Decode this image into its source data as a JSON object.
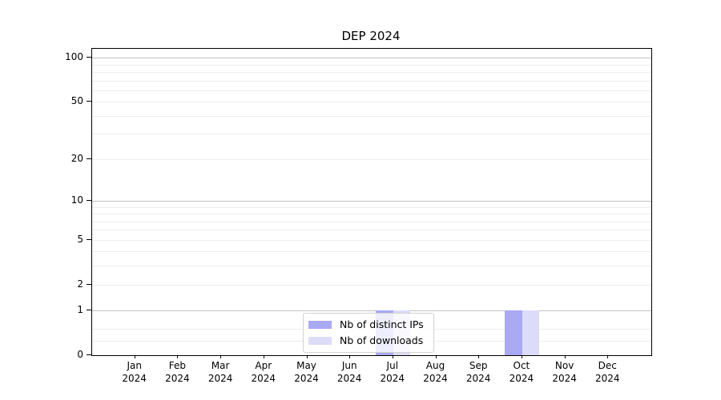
{
  "chart_data": {
    "type": "bar",
    "title": "DEP 2024",
    "categories": [
      "Jan",
      "Feb",
      "Mar",
      "Apr",
      "May",
      "Jun",
      "Jul",
      "Aug",
      "Sep",
      "Oct",
      "Nov",
      "Dec"
    ],
    "year_label": "2024",
    "series": [
      {
        "name": "Nb of distinct IPs",
        "color": "#a9a9f4",
        "values": [
          0,
          0,
          0,
          0,
          0,
          0,
          1,
          0,
          0,
          1,
          0,
          0
        ]
      },
      {
        "name": "Nb of downloads",
        "color": "#dcdcf8",
        "values": [
          0,
          0,
          0,
          0,
          0,
          0,
          1,
          0,
          0,
          1,
          0,
          0
        ]
      }
    ],
    "yscale": "log1p",
    "ylim": [
      0,
      115
    ],
    "yticks": [
      0,
      1,
      2,
      5,
      10,
      20,
      50,
      100
    ],
    "ytick_labels": [
      "0",
      "1",
      "2",
      "5",
      "10",
      "20",
      "50",
      "100"
    ],
    "grid_major_values": [
      1,
      10,
      100
    ],
    "grid_minor_values": [
      0.25,
      0.5,
      2,
      3,
      4,
      5,
      6,
      7,
      8,
      9,
      20,
      30,
      40,
      50,
      60,
      70,
      80,
      90
    ],
    "grid": true,
    "legend_position": "lower center"
  }
}
